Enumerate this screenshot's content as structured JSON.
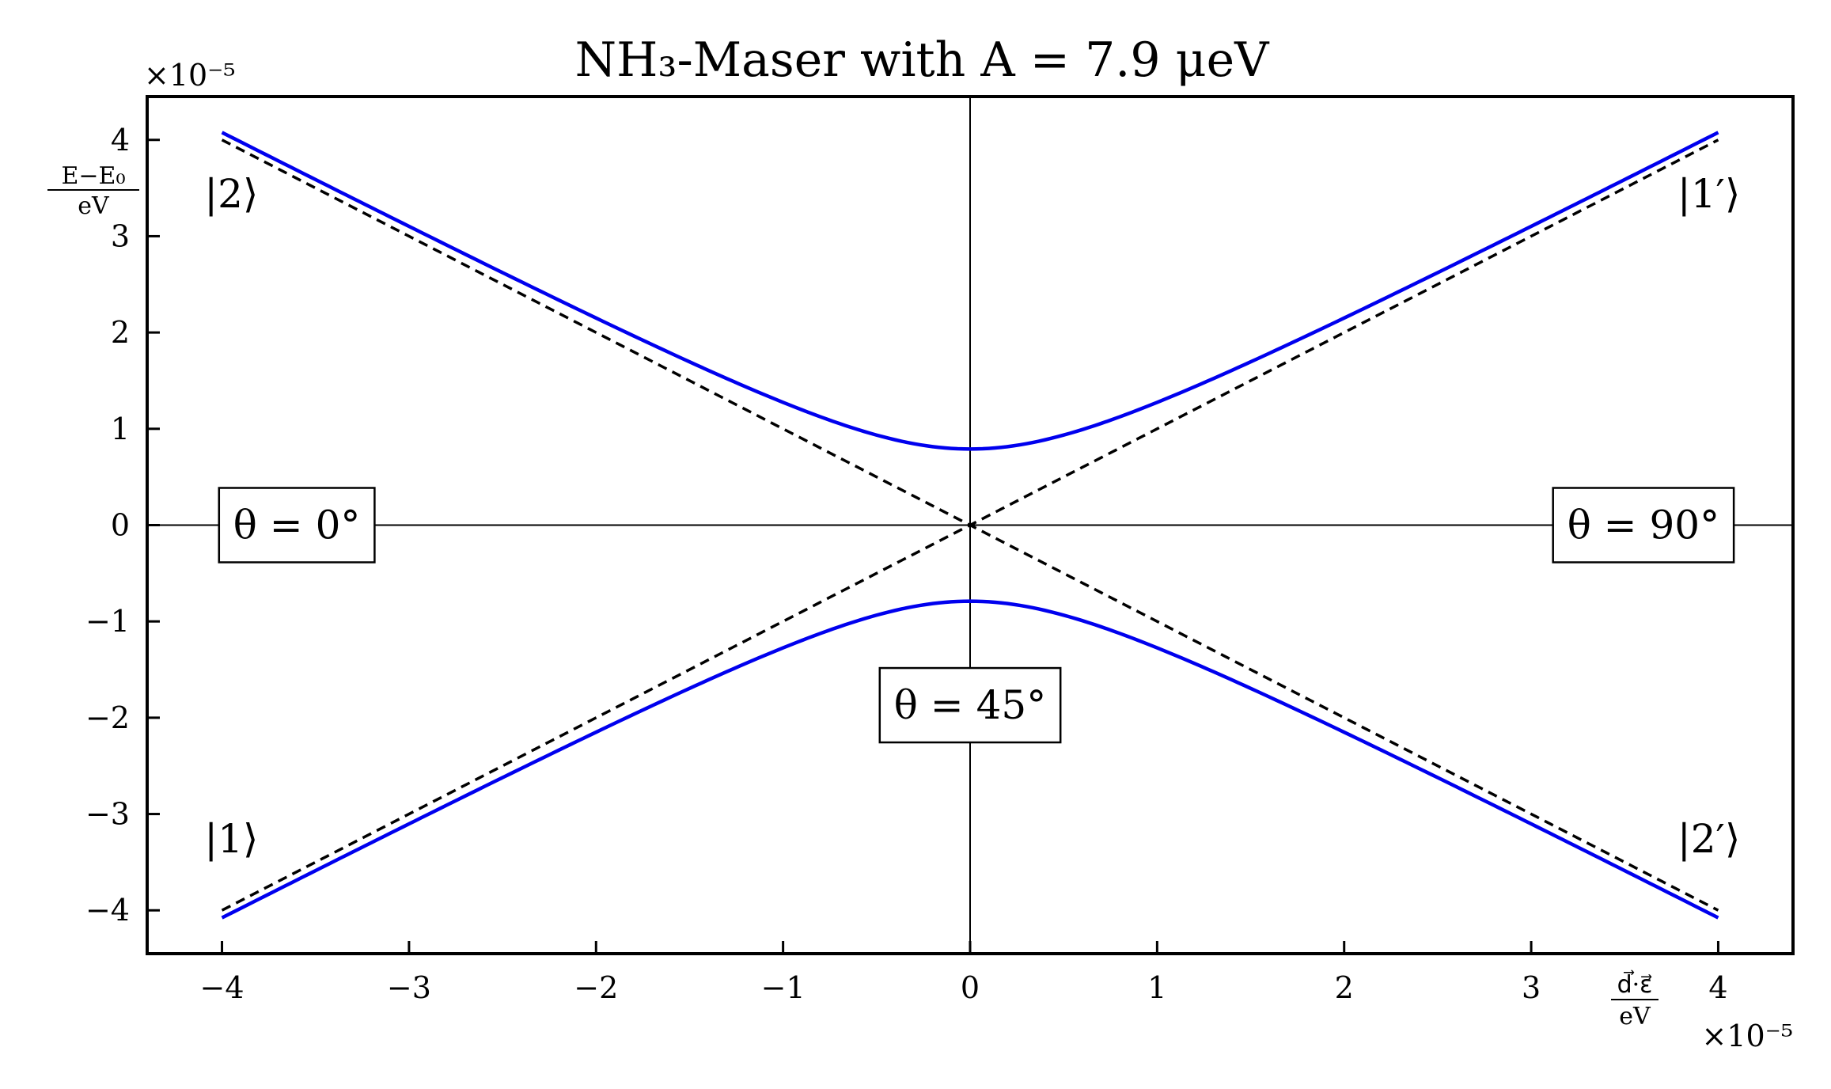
{
  "chart_data": {
    "type": "line",
    "title": "NH₃-Maser with A = 7.9 μeV",
    "xlabel": {
      "numerator": "d⃗·ε⃗",
      "denominator": "eV"
    },
    "ylabel": {
      "numerator": "E−E₀",
      "denominator": "eV"
    },
    "x_multiplier": "×10⁻⁵",
    "y_multiplier": "×10⁻⁵",
    "xlim": [
      -4.4,
      4.4
    ],
    "ylim": [
      -4.45,
      4.45
    ],
    "xticks": [
      -4,
      -3,
      -2,
      -1,
      0,
      1,
      2,
      3,
      4
    ],
    "yticks": [
      -4,
      -3,
      -2,
      -1,
      0,
      1,
      2,
      3,
      4
    ],
    "xtick_labels": [
      "−4",
      "−3",
      "−2",
      "−1",
      "0",
      "1",
      "2",
      "3",
      "4"
    ],
    "ytick_labels": [
      "−4",
      "−3",
      "−2",
      "−1",
      "0",
      "1",
      "2",
      "3",
      "4"
    ],
    "A": 0.79,
    "x_range": [
      -4,
      4
    ],
    "series": [
      {
        "kind": "hyperbola",
        "sign": 1,
        "color": "#0000ee",
        "style": "solid"
      },
      {
        "kind": "hyperbola",
        "sign": -1,
        "color": "#0000ee",
        "style": "solid"
      },
      {
        "kind": "linear",
        "slope": 1,
        "color": "#000000",
        "style": "dashed"
      },
      {
        "kind": "linear",
        "slope": -1,
        "color": "#000000",
        "style": "dashed"
      }
    ],
    "state_labels": [
      {
        "text": "|2⟩",
        "x": -3.95,
        "y": 3.3
      },
      {
        "text": "|1′⟩",
        "x": 3.95,
        "y": 3.3
      },
      {
        "text": "|1⟩",
        "x": -3.95,
        "y": -3.4
      },
      {
        "text": "|2′⟩",
        "x": 3.95,
        "y": -3.4
      }
    ],
    "angle_boxes": [
      {
        "text": "θ = 0°",
        "x": -3.6,
        "y": 0
      },
      {
        "text": "θ = 90°",
        "x": 3.6,
        "y": 0
      },
      {
        "text": "θ = 45°",
        "x": 0,
        "y": -1.87
      }
    ],
    "reference_lines": {
      "x": 0,
      "y": 0
    },
    "grid": false,
    "legend": "none"
  }
}
